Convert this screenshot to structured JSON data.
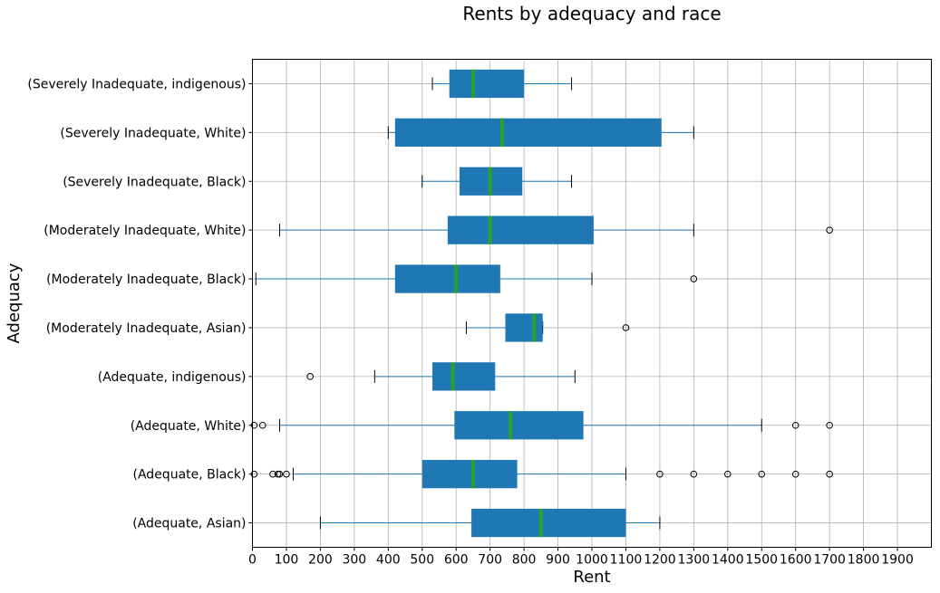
{
  "chart_data": {
    "type": "boxplot",
    "orientation": "horizontal",
    "title": "Rents by adequacy and race",
    "xlabel": "Rent",
    "ylabel": "Adequacy",
    "xlim": [
      0,
      2000
    ],
    "xticks": [
      0,
      100,
      200,
      300,
      400,
      500,
      600,
      700,
      800,
      900,
      1000,
      1100,
      1200,
      1300,
      1400,
      1500,
      1600,
      1700,
      1800,
      1900
    ],
    "grid": true,
    "colors": {
      "box": "#1f77b4",
      "whisker": "#1f77b4",
      "median": "#2ca02c"
    },
    "categories": [
      {
        "label": "(Adequate, Asian)",
        "whisker_low": 200,
        "q1": 645,
        "median": 850,
        "q3": 1100,
        "whisker_high": 1200,
        "fliers": []
      },
      {
        "label": "(Adequate, Black)",
        "whisker_low": 120,
        "q1": 500,
        "median": 650,
        "q3": 780,
        "whisker_high": 1100,
        "fliers": [
          5,
          60,
          75,
          80,
          100,
          1200,
          1300,
          1400,
          1500,
          1600,
          1700
        ]
      },
      {
        "label": "(Adequate, White)",
        "whisker_low": 80,
        "q1": 595,
        "median": 760,
        "q3": 975,
        "whisker_high": 1500,
        "fliers": [
          5,
          30,
          1600,
          1700
        ]
      },
      {
        "label": "(Adequate, indigenous)",
        "whisker_low": 360,
        "q1": 530,
        "median": 590,
        "q3": 715,
        "whisker_high": 950,
        "fliers": [
          170
        ]
      },
      {
        "label": "(Moderately Inadequate, Asian)",
        "whisker_low": 630,
        "q1": 745,
        "median": 830,
        "q3": 855,
        "whisker_high": 855,
        "fliers": [
          1100
        ]
      },
      {
        "label": "(Moderately Inadequate, Black)",
        "whisker_low": 10,
        "q1": 420,
        "median": 600,
        "q3": 730,
        "whisker_high": 1000,
        "fliers": [
          1300
        ]
      },
      {
        "label": "(Moderately Inadequate, White)",
        "whisker_low": 80,
        "q1": 575,
        "median": 700,
        "q3": 1005,
        "whisker_high": 1300,
        "fliers": [
          1700
        ]
      },
      {
        "label": "(Severely Inadequate, Black)",
        "whisker_low": 500,
        "q1": 610,
        "median": 700,
        "q3": 795,
        "whisker_high": 940,
        "fliers": []
      },
      {
        "label": "(Severely Inadequate, White)",
        "whisker_low": 400,
        "q1": 420,
        "median": 735,
        "q3": 1205,
        "whisker_high": 1300,
        "fliers": []
      },
      {
        "label": "(Severely Inadequate, indigenous)",
        "whisker_low": 530,
        "q1": 580,
        "median": 650,
        "q3": 800,
        "whisker_high": 940,
        "fliers": []
      }
    ]
  }
}
